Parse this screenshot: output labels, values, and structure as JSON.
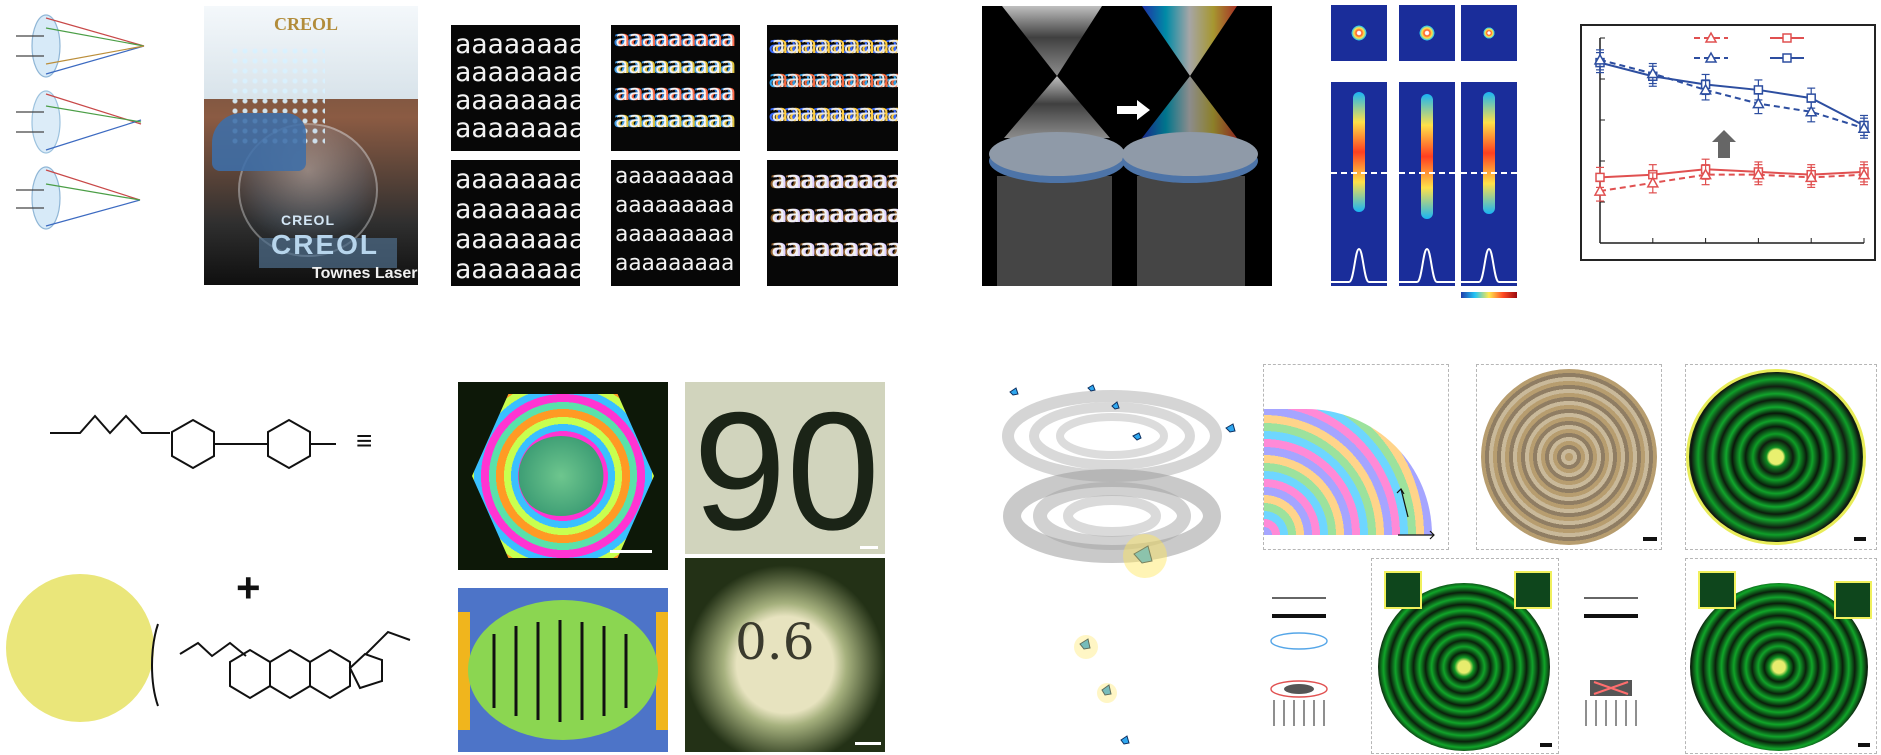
{
  "palette": {
    "blue": "#2d4ea0",
    "red": "#e05050",
    "green": "#1fa12f",
    "yellow": "#eae57a",
    "gold": "#f2b11c"
  },
  "photo": {
    "header": "CREOL",
    "lens_line_1": "CREOL",
    "lens_line_2": "CREOL",
    "footer": "Townes Laser"
  },
  "text_grid": {
    "panels": [
      {
        "text": "aaaaaaaaa"
      },
      {
        "text": "aaaaaaaaa"
      },
      {
        "text": "aaaaaaaaa"
      },
      {
        "text": "aaaaaaaaa"
      },
      {
        "text": "aaaaaaaaa"
      },
      {
        "text": "aaaaaaaaa"
      }
    ]
  },
  "micro": {
    "top_number": "90",
    "bottom_number": "0.6"
  },
  "molecule": {
    "equivalence": "≡",
    "plus": "+"
  },
  "chart_data": {
    "type": "line",
    "x": [
      1,
      2,
      3,
      4,
      5,
      6
    ],
    "series": [
      {
        "values": [
          0.86,
          0.81,
          0.78,
          0.76,
          0.73,
          0.63
        ]
      },
      {
        "values": [
          0.87,
          0.82,
          0.76,
          0.71,
          0.68,
          0.62
        ]
      },
      {
        "values": [
          0.44,
          0.45,
          0.47,
          0.46,
          0.45,
          0.46
        ]
      },
      {
        "values": [
          0.39,
          0.42,
          0.45,
          0.45,
          0.44,
          0.45
        ]
      }
    ],
    "ylim": [
      0.2,
      0.95
    ],
    "grid": false,
    "legend": "top"
  }
}
